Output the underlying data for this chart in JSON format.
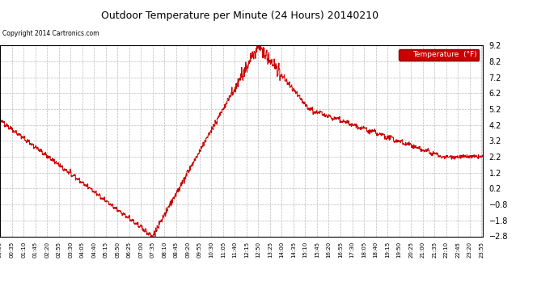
{
  "title": "Outdoor Temperature per Minute (24 Hours) 20140210",
  "copyright_text": "Copyright 2014 Cartronics.com",
  "legend_label": "Temperature  (°F)",
  "line_color": "#cc0000",
  "background_color": "#ffffff",
  "grid_color": "#bbbbbb",
  "ylim": [
    -2.8,
    9.2
  ],
  "yticks": [
    -2.8,
    -1.8,
    -0.8,
    0.2,
    1.2,
    2.2,
    3.2,
    4.2,
    5.2,
    6.2,
    7.2,
    8.2,
    9.2
  ],
  "legend_bg": "#cc0000",
  "legend_text_color": "#ffffff",
  "tick_interval_min": 35
}
